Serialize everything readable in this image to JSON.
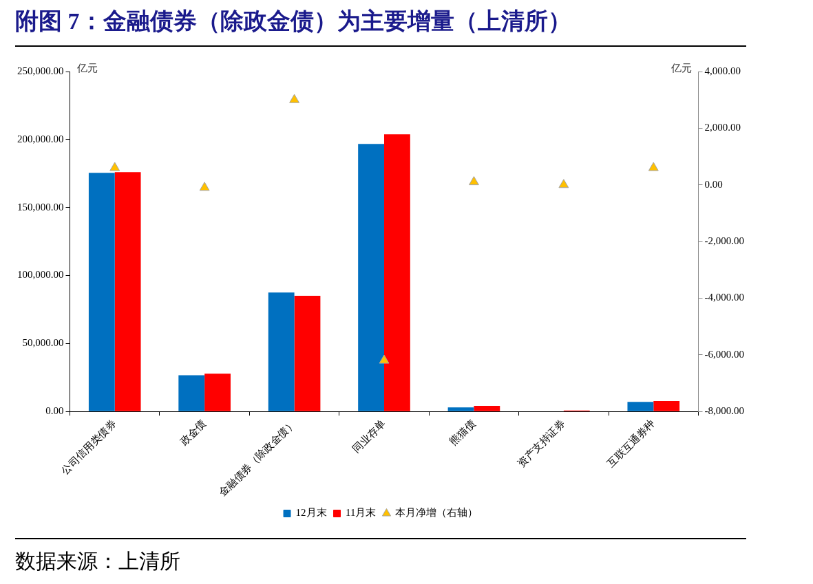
{
  "chart_data": {
    "type": "bar",
    "title": "附图 7：金融债券（除政金债）为主要增量（上清所）",
    "categories": [
      "公司信用类债券",
      "政金债",
      "金融债券（除政金债）",
      "同业存单",
      "熊猫债",
      "资产支持证券",
      "互联互通券种"
    ],
    "series": [
      {
        "name": "12月末",
        "color": "#0070c0",
        "values": [
          175500,
          26600,
          87500,
          196800,
          3000,
          null,
          7100
        ]
      },
      {
        "name": "11月末",
        "color": "#ff0000",
        "values": [
          176000,
          27800,
          85100,
          203900,
          4100,
          700,
          7700
        ]
      },
      {
        "name": "本月净增（右轴）",
        "type": "scatter",
        "axis": "y2",
        "color": "#ffc000",
        "marker": "triangle",
        "values": [
          600,
          -100,
          3000,
          -6200,
          100,
          0,
          600
        ]
      }
    ],
    "ylabel": "亿元",
    "y2label": "亿元",
    "ylim": [
      0,
      250000
    ],
    "yticks": [
      {
        "value": 0,
        "label": "0.00"
      },
      {
        "value": 50000,
        "label": "50,000.00"
      },
      {
        "value": 100000,
        "label": "100,000.00"
      },
      {
        "value": 150000,
        "label": "150,000.00"
      },
      {
        "value": 200000,
        "label": "200,000.00"
      },
      {
        "value": 250000,
        "label": "250,000.00"
      }
    ],
    "y2lim": [
      -8000,
      4000
    ],
    "y2ticks": [
      {
        "value": -8000,
        "label": "-8,000.00"
      },
      {
        "value": -6000,
        "label": "-6,000.00"
      },
      {
        "value": -4000,
        "label": "-4,000.00"
      },
      {
        "value": -2000,
        "label": "-2,000.00"
      },
      {
        "value": 0,
        "label": "0.00"
      },
      {
        "value": 2000,
        "label": "2,000.00"
      },
      {
        "value": 4000,
        "label": "4,000.00"
      }
    ],
    "grid": false,
    "legend": "bottom",
    "annotations": [
      "数据来源：上清所"
    ]
  }
}
